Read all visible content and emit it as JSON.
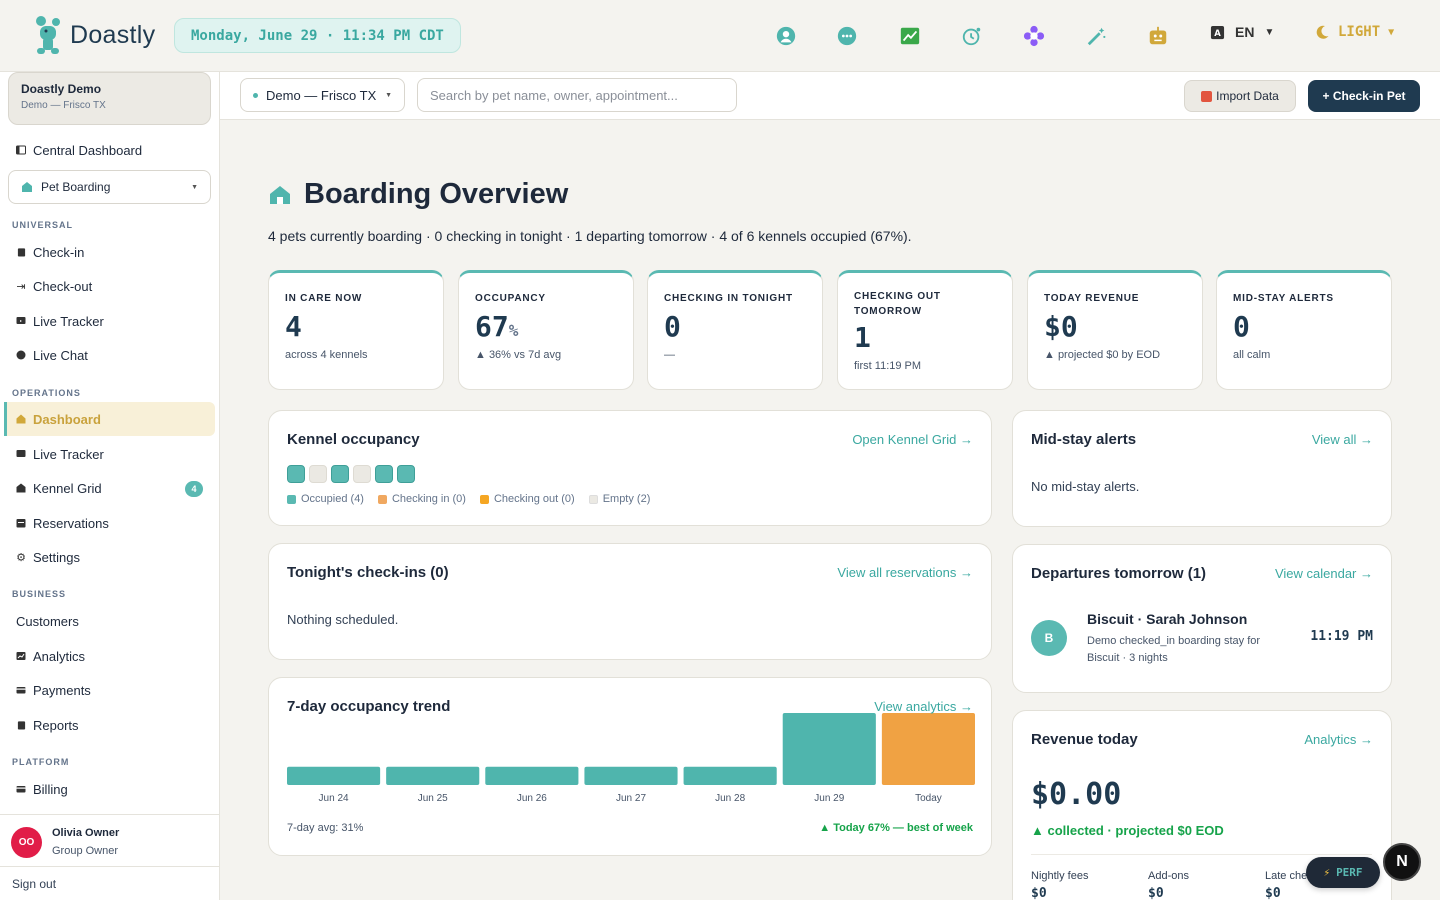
{
  "brand": {
    "name": "Doastly"
  },
  "header": {
    "datetime": "Monday, June 29 · 11:34 PM CDT",
    "icons": [
      "support-icon",
      "chat-icon",
      "chart-icon",
      "clock-icon",
      "flower-icon",
      "magic-wand-icon",
      "robot-icon"
    ],
    "language": "EN",
    "theme": "LIGHT",
    "colors": {
      "accent": "#5ab9b2",
      "navy": "#1f3a50",
      "gold": "#d1a83a"
    }
  },
  "sidebar": {
    "org": {
      "name": "Doastly Demo",
      "sub": "Demo — Frisco TX"
    },
    "central_dashboard": "Central Dashboard",
    "module": "Pet Boarding",
    "sections": {
      "universal": "UNIVERSAL",
      "operations": "OPERATIONS",
      "business": "BUSINESS",
      "platform": "PLATFORM"
    },
    "universal_items": [
      "Check-in",
      "Check-out",
      "Live Tracker",
      "Live Chat"
    ],
    "operations_items": [
      "Dashboard",
      "Live Tracker",
      "Kennel Grid",
      "Reservations",
      "Settings"
    ],
    "kennel_badge": "4",
    "business_items": [
      "Customers",
      "Analytics",
      "Payments",
      "Reports"
    ],
    "platform_items": [
      "Billing"
    ],
    "user": {
      "initials": "OO",
      "name": "Olivia Owner",
      "role": "Group Owner"
    },
    "sign_out": "Sign out"
  },
  "subbar": {
    "location": "Demo — Frisco TX",
    "search_placeholder": "Search by pet name, owner, appointment...",
    "import_label": "Import Data",
    "checkin_label": "+ Check-in Pet"
  },
  "page": {
    "title": "Boarding Overview",
    "subtitle": "4 pets currently boarding · 0 checking in tonight · 1 departing tomorrow · 4 of 6 kennels occupied (67%)."
  },
  "stats": [
    {
      "label": "IN CARE NOW",
      "value": "4",
      "unit": "",
      "note": "across 4 kennels",
      "color": "#5ab9b2"
    },
    {
      "label": "OCCUPANCY",
      "value": "67",
      "unit": "%",
      "note": "▲ 36% vs 7d avg",
      "color": "#f0a860"
    },
    {
      "label": "CHECKING IN TONIGHT",
      "value": "0",
      "unit": "",
      "note": "—",
      "color": "#5ab9b2"
    },
    {
      "label": "CHECKING OUT TOMORROW",
      "value": "1",
      "unit": "",
      "note": "first 11:19 PM",
      "color": "#5ab9b2"
    },
    {
      "label": "TODAY REVENUE",
      "value": "$0",
      "unit": "",
      "note": "▲ projected $0 by EOD",
      "color": "#3aa84a"
    },
    {
      "label": "MID-STAY ALERTS",
      "value": "0",
      "unit": "",
      "note": "all calm",
      "color": "#f5a623"
    }
  ],
  "kennel_card": {
    "title": "Kennel occupancy",
    "link": "Open Kennel Grid →",
    "kennels": [
      "occupied",
      "empty",
      "occupied",
      "empty",
      "occupied",
      "occupied"
    ],
    "legend": [
      "Occupied (4)",
      "Checking in (0)",
      "Checking out (0)",
      "Empty (2)"
    ],
    "legend_colors": [
      "#5ab9b2",
      "#f0a860",
      "#f5a623",
      "#ebe9e3"
    ]
  },
  "alerts_card": {
    "title": "Mid-stay alerts",
    "link": "View all →",
    "empty": "No mid-stay alerts."
  },
  "checkins_card": {
    "title": "Tonight's check-ins (0)",
    "link": "View all reservations →",
    "empty": "Nothing scheduled."
  },
  "departures_card": {
    "title": "Departures tomorrow (1)",
    "link": "View calendar →",
    "item": {
      "initial": "B",
      "name": "Biscuit · Sarah Johnson",
      "desc": "Demo checked_in boarding stay for Biscuit · 3 nights",
      "time": "11:19 PM"
    }
  },
  "revenue_card": {
    "title": "Revenue today",
    "link": "Analytics →",
    "value": "$0.00",
    "note": "▲ collected · projected $0 EOD",
    "cols": [
      {
        "label": "Nightly fees",
        "value": "$0"
      },
      {
        "label": "Add-ons",
        "value": "$0"
      },
      {
        "label": "Late che",
        "value": "$0"
      }
    ]
  },
  "trend_card": {
    "title": "7-day occupancy trend",
    "link": "View analytics →",
    "foot_left": "7-day avg: 31%",
    "foot_right": "▲ Today 67% — best of week"
  },
  "chart_data": {
    "type": "bar",
    "title": "7-day occupancy trend",
    "categories": [
      "Jun 24",
      "Jun 25",
      "Jun 26",
      "Jun 27",
      "Jun 28",
      "Jun 29",
      "Today"
    ],
    "values": [
      17,
      17,
      17,
      17,
      17,
      67,
      67
    ],
    "unit": "%",
    "ylim": [
      0,
      67
    ],
    "colors": {
      "default": "#4fb5ad",
      "today": "#f0a243"
    }
  },
  "widgets": {
    "perf": "PERF",
    "next": "N"
  }
}
